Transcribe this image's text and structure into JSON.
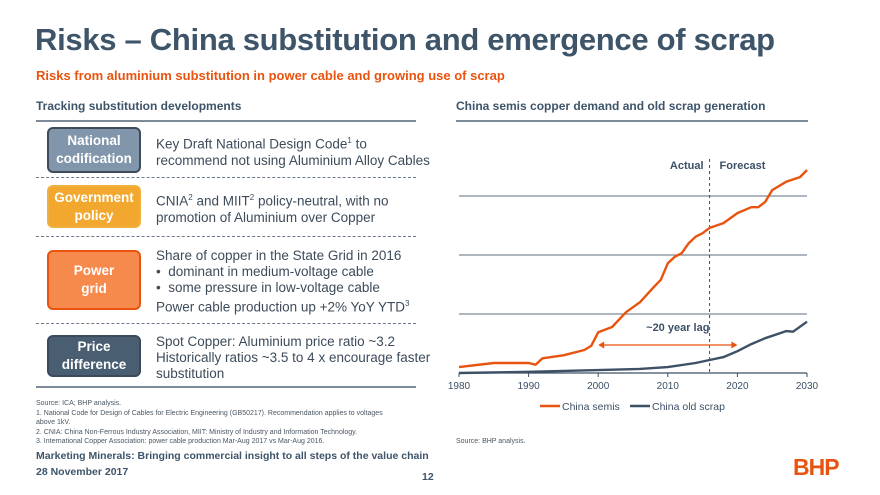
{
  "title": "Risks – China substitution and emergence of scrap",
  "subtitle": "Risks from aluminium substitution in power cable and growing use of scrap",
  "left": {
    "heading": "Tracking substitution developments",
    "rows": [
      {
        "label_1": "National",
        "label_2": "codification",
        "color": "#8196aa",
        "lines": [
          "Key Draft National Design Code",
          "to"
        ],
        "sup": "1",
        "line2": "recommend not using Aluminium Alloy Cables"
      },
      {
        "label_1": "Government",
        "label_2": "policy",
        "color": "#f2a82e",
        "line1a": "CNIA",
        "sup1": "2",
        "line1b": " and MIIT",
        "sup2": "2",
        "line1c": " policy-neutral, with no",
        "line2": "promotion of Aluminium over Copper"
      },
      {
        "label_1": "Power",
        "label_2": "grid",
        "color": "#f58a4c",
        "line1": "Share of copper in the State Grid in 2016",
        "bullet1": "dominant in medium-voltage cable",
        "bullet2": "some pressure in low-voltage cable",
        "line4": "Power cable production up +2% YoY YTD",
        "sup": "3"
      },
      {
        "label_1": "Price",
        "label_2": "difference",
        "color": "#4a5e72",
        "line1": "Spot Copper: Aluminium price ratio ~3.2",
        "line2": "Historically ratios ~3.5 to 4 x encourage faster",
        "line3": "substitution"
      }
    ],
    "notes": [
      "Source:   ICA; BHP analysis.",
      "1.  National Code for Design of Cables for Electric Engineering (GB50217). Recommendation applies to voltages",
      "     above 1kV.",
      "2.  CNIA: China Non-Ferrous Industry Association, MIIT: Ministry of Industry and Information Technology.",
      "3.  International Copper Association: power cable production Mar-Aug 2017 vs Mar-Aug 2016."
    ]
  },
  "chart_data": {
    "type": "line",
    "title": "China semis copper demand and old scrap generation",
    "xlabel": "",
    "ylabel": "",
    "xlim": [
      1980,
      2030
    ],
    "ylim": [
      0,
      4
    ],
    "xticks": [
      "1980",
      "1990",
      "2000",
      "2010",
      "2020",
      "2030"
    ],
    "grid": true,
    "legend_position": "bottom",
    "annotations": {
      "actual": "Actual",
      "forecast": "Forecast",
      "forecast_start": 2016,
      "lag": "~20 year lag",
      "lag_from": 2000,
      "lag_to": 2020
    },
    "series": [
      {
        "name": "China semis",
        "color": "#e8540f",
        "x": [
          1980,
          1985,
          1990,
          1991,
          1992,
          1995,
          1998,
          1999,
          2000,
          2002,
          2004,
          2006,
          2008,
          2009,
          2010,
          2011,
          2012,
          2013,
          2014,
          2015,
          2016,
          2018,
          2020,
          2022,
          2023,
          2024,
          2025,
          2027,
          2029,
          2030
        ],
        "y": [
          0.1,
          0.17,
          0.17,
          0.14,
          0.25,
          0.3,
          0.39,
          0.46,
          0.69,
          0.78,
          1.03,
          1.2,
          1.46,
          1.58,
          1.86,
          1.97,
          2.03,
          2.2,
          2.31,
          2.37,
          2.46,
          2.54,
          2.71,
          2.81,
          2.81,
          2.9,
          3.1,
          3.24,
          3.32,
          3.44
        ]
      },
      {
        "name": "China old scrap",
        "color": "#3d5066",
        "x": [
          1980,
          1990,
          2000,
          2006,
          2010,
          2014,
          2016,
          2018,
          2020,
          2022,
          2024,
          2026,
          2027,
          2028,
          2030
        ],
        "y": [
          0,
          0.02,
          0.05,
          0.07,
          0.1,
          0.17,
          0.22,
          0.27,
          0.37,
          0.49,
          0.59,
          0.67,
          0.71,
          0.7,
          0.87
        ]
      }
    ],
    "source": "Source:   BHP analysis."
  },
  "footer": {
    "line1": "Marketing Minerals: Bringing commercial insight to all steps of the value chain",
    "line2": "28 November 2017",
    "page": "12",
    "logo": "BHP"
  }
}
